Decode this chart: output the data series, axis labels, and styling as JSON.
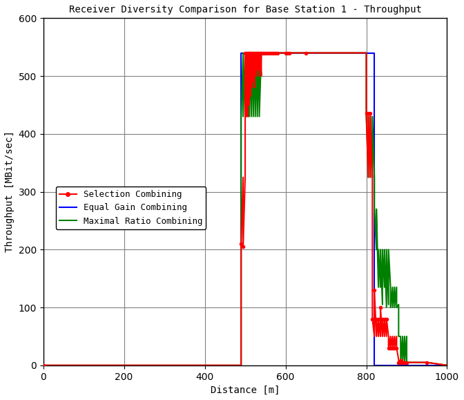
{
  "title": "Receiver Diversity Comparison for Base Station 1 - Throughput",
  "xlabel": "Distance [m]",
  "ylabel": "Throughput [MBit/sec]",
  "xlim": [
    0,
    1000
  ],
  "ylim": [
    0,
    600
  ],
  "xticks": [
    0,
    200,
    400,
    600,
    800,
    1000
  ],
  "yticks": [
    0,
    100,
    200,
    300,
    400,
    500,
    600
  ],
  "bg_color": "#ffffff",
  "grid_color": "#808080",
  "sc_color": "#ff0000",
  "egc_color": "#0000ff",
  "mrc_color": "#008000",
  "legend_labels": [
    "Selection Combining",
    "Equal Gain Combining",
    "Maximal Ratio Combining"
  ],
  "sc_x": [
    0,
    490,
    490,
    495,
    495,
    500,
    500,
    503,
    503,
    507,
    507,
    510,
    510,
    513,
    513,
    516,
    516,
    520,
    520,
    523,
    523,
    527,
    527,
    530,
    530,
    533,
    533,
    537,
    537,
    540,
    540,
    545,
    545,
    550,
    550,
    555,
    555,
    560,
    560,
    565,
    565,
    570,
    570,
    575,
    575,
    580,
    580,
    600,
    600,
    605,
    605,
    610,
    610,
    650,
    650,
    800,
    800,
    805,
    805,
    810,
    810,
    815,
    815,
    820,
    820,
    825,
    825,
    830,
    830,
    835,
    835,
    840,
    840,
    845,
    845,
    850,
    850,
    855,
    855,
    860,
    860,
    865,
    865,
    870,
    870,
    875,
    875,
    880,
    880,
    885,
    885,
    890,
    890,
    895,
    895,
    900,
    900,
    950,
    950,
    1000
  ],
  "sc_y": [
    0,
    0,
    210,
    325,
    205,
    325,
    540,
    430,
    540,
    430,
    540,
    450,
    540,
    465,
    540,
    480,
    540,
    490,
    540,
    480,
    540,
    500,
    540,
    510,
    540,
    500,
    540,
    510,
    540,
    500,
    540,
    540,
    540,
    540,
    540,
    540,
    540,
    540,
    540,
    540,
    540,
    540,
    540,
    540,
    540,
    540,
    540,
    540,
    540,
    540,
    540,
    540,
    540,
    540,
    540,
    540,
    435,
    325,
    435,
    325,
    435,
    325,
    80,
    50,
    130,
    50,
    80,
    50,
    80,
    50,
    100,
    50,
    80,
    50,
    80,
    50,
    80,
    50,
    30,
    50,
    30,
    50,
    30,
    50,
    30,
    50,
    30,
    10,
    5,
    10,
    5,
    10,
    5,
    5,
    5,
    5,
    5,
    5,
    5,
    0
  ],
  "egc_x": [
    0,
    490,
    490,
    540,
    540,
    800,
    800,
    820,
    820,
    1000
  ],
  "egc_y": [
    0,
    0,
    540,
    540,
    540,
    540,
    540,
    540,
    0,
    0
  ],
  "mrc_x": [
    0,
    490,
    490,
    495,
    495,
    500,
    500,
    503,
    503,
    507,
    507,
    510,
    510,
    515,
    515,
    520,
    520,
    525,
    525,
    530,
    530,
    535,
    535,
    540,
    540,
    545,
    545,
    550,
    550,
    600,
    600,
    650,
    650,
    800,
    800,
    805,
    805,
    810,
    810,
    815,
    815,
    820,
    820,
    825,
    825,
    830,
    830,
    835,
    835,
    840,
    840,
    845,
    845,
    850,
    850,
    855,
    855,
    860,
    860,
    865,
    865,
    870,
    870,
    875,
    875,
    880,
    880,
    885,
    885,
    890,
    890,
    895,
    895,
    900,
    900,
    950,
    950,
    1000
  ],
  "mrc_y": [
    0,
    0,
    430,
    540,
    430,
    540,
    430,
    540,
    430,
    540,
    430,
    540,
    430,
    540,
    430,
    540,
    430,
    540,
    430,
    540,
    430,
    540,
    430,
    540,
    540,
    540,
    540,
    540,
    540,
    540,
    540,
    540,
    540,
    540,
    430,
    325,
    430,
    325,
    430,
    325,
    430,
    325,
    270,
    200,
    270,
    135,
    200,
    135,
    200,
    105,
    200,
    135,
    200,
    100,
    200,
    105,
    200,
    135,
    100,
    135,
    100,
    135,
    100,
    135,
    100,
    105,
    50,
    50,
    5,
    50,
    5,
    50,
    5,
    50,
    5,
    5,
    5,
    0
  ]
}
